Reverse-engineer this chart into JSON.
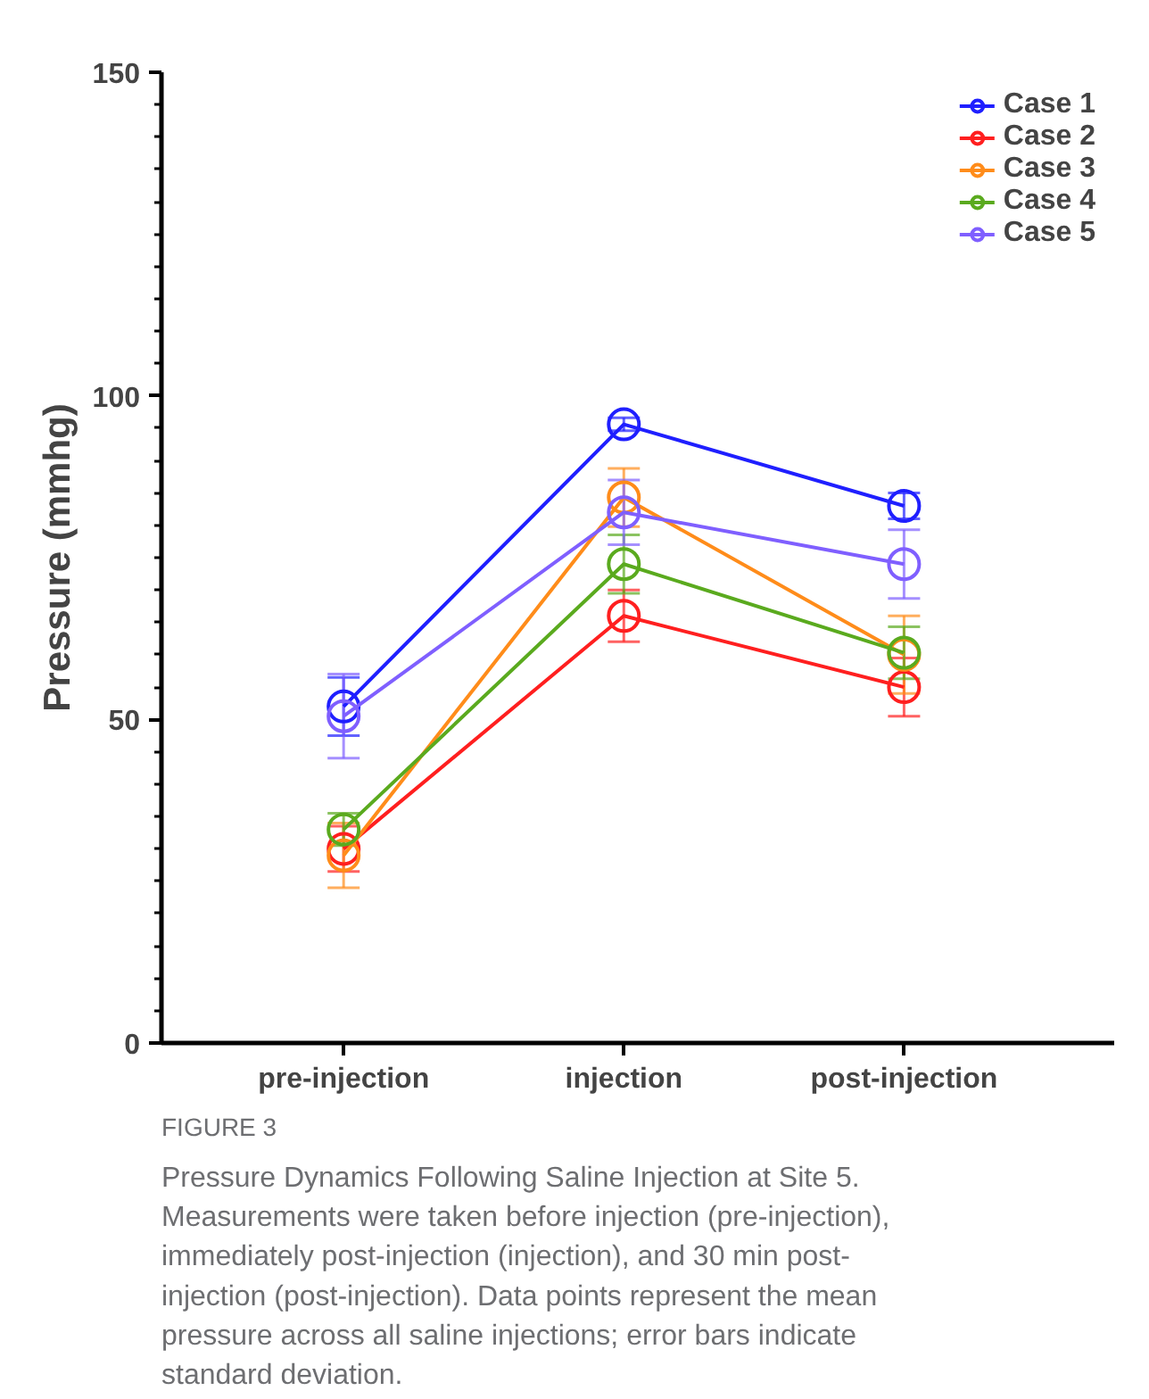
{
  "chart_data": {
    "type": "line",
    "ylabel": "Pressure (mmhg)",
    "categories": [
      "pre-injection",
      "injection",
      "post-injection"
    ],
    "ylim": [
      0,
      150
    ],
    "yticks": [
      0,
      {
        "value": 5,
        "label": null
      },
      {
        "value": 10,
        "label": null
      },
      {
        "value": 15,
        "label": null
      },
      {
        "value": 20,
        "label": null
      },
      {
        "value": 25,
        "label": null
      },
      {
        "value": 30,
        "label": null
      },
      {
        "value": 35,
        "label": null
      },
      {
        "value": 40,
        "label": null
      },
      {
        "value": 45,
        "label": null
      },
      50,
      {
        "value": 55,
        "label": null
      },
      {
        "value": 60,
        "label": null
      },
      {
        "value": 65,
        "label": null
      },
      {
        "value": 70,
        "label": null
      },
      {
        "value": 75,
        "label": null
      },
      {
        "value": 80,
        "label": null
      },
      {
        "value": 85,
        "label": null
      },
      {
        "value": 90,
        "label": null
      },
      {
        "value": 95,
        "label": null
      },
      100,
      {
        "value": 105,
        "label": null
      },
      {
        "value": 110,
        "label": null
      },
      {
        "value": 115,
        "label": null
      },
      {
        "value": 120,
        "label": null
      },
      {
        "value": 125,
        "label": null
      },
      {
        "value": 130,
        "label": null
      },
      {
        "value": 135,
        "label": null
      },
      {
        "value": 140,
        "label": null
      },
      {
        "value": 145,
        "label": null
      },
      150
    ],
    "grid": false,
    "legend": "top right",
    "marker": "circle",
    "line_style": "solid",
    "series": [
      {
        "name": "Case 1",
        "color": "#1f1fff",
        "values": [
          52,
          95.6,
          83
        ],
        "errors": [
          4.5,
          1,
          2
        ]
      },
      {
        "name": "Case 2",
        "color": "#ff1f1f",
        "values": [
          30,
          66,
          55
        ],
        "errors": [
          3.5,
          4,
          4.5
        ]
      },
      {
        "name": "Case 3",
        "color": "#ff8c1a",
        "values": [
          29,
          84.3,
          60
        ],
        "errors": [
          5,
          4.5,
          6
        ]
      },
      {
        "name": "Case 4",
        "color": "#5aaa1e",
        "values": [
          33,
          74,
          60.3
        ],
        "errors": [
          2.5,
          4.5,
          4
        ]
      },
      {
        "name": "Case 5",
        "color": "#7f5fff",
        "values": [
          50.5,
          82,
          74
        ],
        "errors": [
          6.5,
          5,
          5.3
        ]
      }
    ],
    "annotations": [
      "FIGURE 3",
      "Pressure Dynamics Following Saline Injection at Site 5. Measurements were taken before injection (pre-injection), immediately post-injection (injection), and 30 min post-injection (post-injection). Data points represent the mean pressure across all saline injections; error bars indicate standard deviation."
    ]
  }
}
